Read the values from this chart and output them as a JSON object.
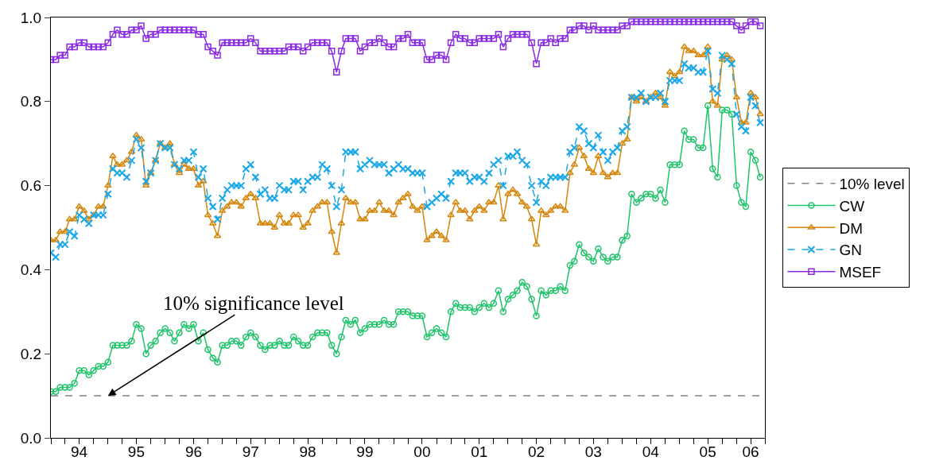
{
  "chart_data": {
    "type": "line",
    "x": [
      "1994-01",
      "1994-02",
      "1994-03",
      "1994-04",
      "1994-05",
      "1994-06",
      "1994-07",
      "1994-08",
      "1994-09",
      "1994-10",
      "1994-11",
      "1994-12",
      "1995-01",
      "1995-02",
      "1995-03",
      "1995-04",
      "1995-05",
      "1995-06",
      "1995-07",
      "1995-08",
      "1995-09",
      "1995-10",
      "1995-11",
      "1995-12",
      "1996-01",
      "1996-02",
      "1996-03",
      "1996-04",
      "1996-05",
      "1996-06",
      "1996-07",
      "1996-08",
      "1996-09",
      "1996-10",
      "1996-11",
      "1996-12",
      "1997-01",
      "1997-02",
      "1997-03",
      "1997-04",
      "1997-05",
      "1997-06",
      "1997-07",
      "1997-08",
      "1997-09",
      "1997-10",
      "1997-11",
      "1997-12",
      "1998-01",
      "1998-02",
      "1998-03",
      "1998-04",
      "1998-05",
      "1998-06",
      "1998-07",
      "1998-08",
      "1998-09",
      "1998-10",
      "1998-11",
      "1998-12",
      "1999-01",
      "1999-02",
      "1999-03",
      "1999-04",
      "1999-05",
      "1999-06",
      "1999-07",
      "1999-08",
      "1999-09",
      "1999-10",
      "1999-11",
      "1999-12",
      "2000-01",
      "2000-02",
      "2000-03",
      "2000-04",
      "2000-05",
      "2000-06",
      "2000-07",
      "2000-08",
      "2000-09",
      "2000-10",
      "2000-11",
      "2000-12",
      "2001-01",
      "2001-02",
      "2001-03",
      "2001-04",
      "2001-05",
      "2001-06",
      "2001-07",
      "2001-08",
      "2001-09",
      "2001-10",
      "2001-11",
      "2001-12",
      "2002-01",
      "2002-02",
      "2002-03",
      "2002-04",
      "2002-05",
      "2002-06",
      "2002-07",
      "2002-08",
      "2002-09",
      "2002-10",
      "2002-11",
      "2002-12",
      "2003-01",
      "2003-02",
      "2003-03",
      "2003-04",
      "2003-05",
      "2003-06",
      "2003-07",
      "2003-08",
      "2003-09",
      "2003-10",
      "2003-11",
      "2003-12",
      "2004-01",
      "2004-02",
      "2004-03",
      "2004-04",
      "2004-05",
      "2004-06",
      "2004-07",
      "2004-08",
      "2004-09",
      "2004-10",
      "2004-11",
      "2004-12",
      "2005-01",
      "2005-02",
      "2005-03",
      "2005-04",
      "2005-05",
      "2005-06",
      "2005-07",
      "2005-08",
      "2005-09",
      "2005-10",
      "2005-11",
      "2005-12",
      "2006-01",
      "2006-02",
      "2006-03",
      "2006-04",
      "2006-05",
      "2006-06"
    ],
    "series": [
      {
        "name": "CW",
        "color": "#1fc46a",
        "marker": "circle",
        "line_style": "solid",
        "values": [
          0.11,
          0.11,
          0.12,
          0.12,
          0.12,
          0.13,
          0.16,
          0.16,
          0.15,
          0.16,
          0.17,
          0.17,
          0.18,
          0.22,
          0.22,
          0.22,
          0.22,
          0.23,
          0.27,
          0.26,
          0.2,
          0.22,
          0.23,
          0.25,
          0.26,
          0.25,
          0.23,
          0.25,
          0.27,
          0.26,
          0.27,
          0.23,
          0.25,
          0.21,
          0.19,
          0.18,
          0.22,
          0.22,
          0.23,
          0.23,
          0.22,
          0.24,
          0.25,
          0.24,
          0.22,
          0.21,
          0.22,
          0.22,
          0.23,
          0.22,
          0.22,
          0.24,
          0.23,
          0.22,
          0.22,
          0.24,
          0.25,
          0.25,
          0.25,
          0.22,
          0.2,
          0.24,
          0.28,
          0.27,
          0.28,
          0.25,
          0.26,
          0.27,
          0.27,
          0.27,
          0.28,
          0.27,
          0.27,
          0.3,
          0.3,
          0.3,
          0.29,
          0.29,
          0.29,
          0.24,
          0.25,
          0.26,
          0.25,
          0.24,
          0.3,
          0.32,
          0.31,
          0.31,
          0.31,
          0.3,
          0.31,
          0.32,
          0.31,
          0.32,
          0.35,
          0.3,
          0.33,
          0.34,
          0.35,
          0.37,
          0.36,
          0.33,
          0.29,
          0.35,
          0.34,
          0.35,
          0.35,
          0.36,
          0.35,
          0.41,
          0.42,
          0.46,
          0.44,
          0.43,
          0.42,
          0.45,
          0.43,
          0.42,
          0.43,
          0.43,
          0.47,
          0.48,
          0.58,
          0.56,
          0.57,
          0.58,
          0.58,
          0.57,
          0.59,
          0.56,
          0.65,
          0.65,
          0.65,
          0.73,
          0.71,
          0.71,
          0.69,
          0.69,
          0.79,
          0.64,
          0.62,
          0.78,
          0.78,
          0.77,
          0.6,
          0.56,
          0.55,
          0.68,
          0.66,
          0.62
        ]
      },
      {
        "name": "DM",
        "color": "#d4860b",
        "marker": "triangle",
        "line_style": "solid",
        "values": [
          0.47,
          0.47,
          0.49,
          0.49,
          0.52,
          0.52,
          0.55,
          0.54,
          0.52,
          0.53,
          0.55,
          0.55,
          0.6,
          0.67,
          0.65,
          0.65,
          0.66,
          0.68,
          0.72,
          0.71,
          0.6,
          0.63,
          0.66,
          0.7,
          0.69,
          0.7,
          0.65,
          0.63,
          0.65,
          0.64,
          0.64,
          0.6,
          0.61,
          0.53,
          0.51,
          0.48,
          0.54,
          0.55,
          0.56,
          0.56,
          0.55,
          0.57,
          0.58,
          0.57,
          0.51,
          0.51,
          0.51,
          0.5,
          0.53,
          0.51,
          0.51,
          0.53,
          0.53,
          0.5,
          0.51,
          0.54,
          0.55,
          0.56,
          0.56,
          0.49,
          0.44,
          0.51,
          0.57,
          0.56,
          0.56,
          0.52,
          0.52,
          0.54,
          0.54,
          0.56,
          0.54,
          0.54,
          0.53,
          0.56,
          0.57,
          0.58,
          0.55,
          0.54,
          0.55,
          0.47,
          0.48,
          0.49,
          0.48,
          0.47,
          0.53,
          0.56,
          0.54,
          0.54,
          0.52,
          0.54,
          0.55,
          0.54,
          0.56,
          0.56,
          0.6,
          0.52,
          0.58,
          0.59,
          0.58,
          0.56,
          0.55,
          0.52,
          0.46,
          0.54,
          0.53,
          0.54,
          0.55,
          0.55,
          0.54,
          0.63,
          0.65,
          0.69,
          0.67,
          0.64,
          0.63,
          0.67,
          0.63,
          0.62,
          0.63,
          0.63,
          0.7,
          0.71,
          0.81,
          0.8,
          0.81,
          0.8,
          0.81,
          0.82,
          0.81,
          0.79,
          0.87,
          0.86,
          0.87,
          0.93,
          0.92,
          0.92,
          0.91,
          0.91,
          0.93,
          0.8,
          0.79,
          0.9,
          0.91,
          0.9,
          0.81,
          0.75,
          0.75,
          0.82,
          0.81,
          0.77
        ]
      },
      {
        "name": "GN",
        "color": "#1aa7e8",
        "marker": "cross",
        "line_style": "dashed",
        "values": [
          0.44,
          0.43,
          0.46,
          0.46,
          0.49,
          0.48,
          0.53,
          0.52,
          0.51,
          0.53,
          0.53,
          0.53,
          0.58,
          0.64,
          0.63,
          0.63,
          0.62,
          0.66,
          0.71,
          0.69,
          0.61,
          0.63,
          0.66,
          0.7,
          0.69,
          0.69,
          0.65,
          0.64,
          0.66,
          0.66,
          0.68,
          0.62,
          0.64,
          0.57,
          0.55,
          0.52,
          0.57,
          0.59,
          0.6,
          0.6,
          0.6,
          0.64,
          0.65,
          0.62,
          0.58,
          0.59,
          0.57,
          0.57,
          0.6,
          0.59,
          0.59,
          0.61,
          0.61,
          0.59,
          0.61,
          0.62,
          0.62,
          0.65,
          0.64,
          0.6,
          0.55,
          0.59,
          0.68,
          0.68,
          0.68,
          0.64,
          0.65,
          0.66,
          0.65,
          0.65,
          0.65,
          0.63,
          0.64,
          0.65,
          0.64,
          0.64,
          0.63,
          0.63,
          0.63,
          0.55,
          0.56,
          0.57,
          0.58,
          0.57,
          0.61,
          0.63,
          0.63,
          0.63,
          0.61,
          0.62,
          0.62,
          0.61,
          0.63,
          0.65,
          0.66,
          0.6,
          0.67,
          0.67,
          0.68,
          0.66,
          0.65,
          0.6,
          0.56,
          0.61,
          0.6,
          0.62,
          0.62,
          0.62,
          0.62,
          0.68,
          0.69,
          0.74,
          0.73,
          0.7,
          0.69,
          0.72,
          0.68,
          0.66,
          0.68,
          0.69,
          0.73,
          0.74,
          0.81,
          0.81,
          0.82,
          0.8,
          0.81,
          0.81,
          0.82,
          0.8,
          0.85,
          0.85,
          0.85,
          0.89,
          0.88,
          0.88,
          0.87,
          0.87,
          0.92,
          0.83,
          0.82,
          0.91,
          0.9,
          0.89,
          0.77,
          0.74,
          0.73,
          0.81,
          0.79,
          0.75
        ]
      },
      {
        "name": "MSEF",
        "color": "#8a2be2",
        "marker": "square",
        "line_style": "solid",
        "values": [
          0.9,
          0.9,
          0.91,
          0.91,
          0.93,
          0.93,
          0.94,
          0.94,
          0.93,
          0.93,
          0.93,
          0.93,
          0.94,
          0.96,
          0.97,
          0.96,
          0.96,
          0.97,
          0.97,
          0.98,
          0.95,
          0.96,
          0.96,
          0.97,
          0.97,
          0.97,
          0.97,
          0.97,
          0.97,
          0.97,
          0.97,
          0.96,
          0.96,
          0.93,
          0.92,
          0.91,
          0.94,
          0.94,
          0.94,
          0.94,
          0.94,
          0.94,
          0.95,
          0.94,
          0.92,
          0.92,
          0.92,
          0.92,
          0.92,
          0.92,
          0.93,
          0.93,
          0.93,
          0.92,
          0.93,
          0.94,
          0.94,
          0.94,
          0.94,
          0.92,
          0.87,
          0.92,
          0.95,
          0.95,
          0.95,
          0.92,
          0.93,
          0.94,
          0.94,
          0.95,
          0.94,
          0.93,
          0.93,
          0.95,
          0.95,
          0.96,
          0.94,
          0.94,
          0.94,
          0.9,
          0.9,
          0.91,
          0.91,
          0.9,
          0.94,
          0.96,
          0.95,
          0.95,
          0.94,
          0.94,
          0.95,
          0.95,
          0.95,
          0.95,
          0.96,
          0.93,
          0.95,
          0.96,
          0.96,
          0.96,
          0.96,
          0.94,
          0.89,
          0.94,
          0.94,
          0.95,
          0.94,
          0.95,
          0.95,
          0.97,
          0.97,
          0.98,
          0.98,
          0.97,
          0.98,
          0.97,
          0.97,
          0.97,
          0.97,
          0.97,
          0.98,
          0.98,
          0.99,
          0.99,
          0.99,
          0.99,
          0.99,
          0.99,
          0.99,
          0.99,
          0.99,
          0.99,
          0.99,
          0.99,
          0.99,
          0.99,
          0.99,
          0.99,
          0.99,
          0.99,
          0.99,
          0.99,
          0.99,
          0.99,
          0.98,
          0.97,
          0.98,
          0.99,
          0.99,
          0.98
        ]
      }
    ],
    "ref_lines": [
      {
        "axis": "y",
        "value": 0.1,
        "label": "10% level",
        "color": "#808080",
        "line_style": "dashed"
      }
    ],
    "annotations": [
      {
        "text": "10% significance level",
        "x": "1995-01",
        "y": 0.1
      }
    ],
    "xlim": [
      "1994-01",
      "2006-07"
    ],
    "xticks": [
      {
        "value": "1994-07",
        "label": "94"
      },
      {
        "value": "1995-07",
        "label": "95"
      },
      {
        "value": "1996-07",
        "label": "96"
      },
      {
        "value": "1997-07",
        "label": "97"
      },
      {
        "value": "1998-07",
        "label": "98"
      },
      {
        "value": "1999-07",
        "label": "99"
      },
      {
        "value": "2000-07",
        "label": "00"
      },
      {
        "value": "2001-07",
        "label": "01"
      },
      {
        "value": "2002-07",
        "label": "02"
      },
      {
        "value": "2003-07",
        "label": "03"
      },
      {
        "value": "2004-07",
        "label": "04"
      },
      {
        "value": "2005-07",
        "label": "05"
      },
      {
        "value": "2006-04",
        "label": "06"
      }
    ],
    "ylim": [
      0,
      1
    ],
    "yticks": [
      {
        "value": 0,
        "label": "0.0"
      },
      0.2,
      0.4,
      0.6,
      0.8,
      {
        "value": 1,
        "label": "1.0"
      }
    ],
    "legend": "right"
  }
}
